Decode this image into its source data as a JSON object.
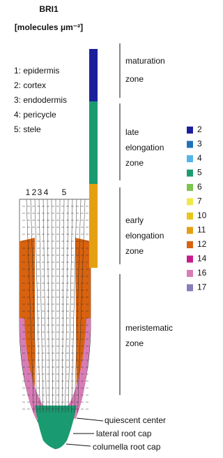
{
  "header": {
    "title": "BRI1",
    "unit": "[molecules μm⁻²]"
  },
  "layers": [
    "1: epidermis",
    "2: cortex",
    "3: endodermis",
    "4: pericycle",
    "5: stele"
  ],
  "column_numbers": [
    "1",
    "2",
    "3",
    "4",
    "5"
  ],
  "zones": [
    "maturation zone",
    "late elongation zone",
    "early elongation zone",
    "meristematic zone"
  ],
  "tip_labels": [
    "quiescent center",
    "lateral root cap",
    "columella root cap"
  ],
  "legend": [
    {
      "label": "2",
      "color": "#1c1f9c"
    },
    {
      "label": "3",
      "color": "#1f72b8"
    },
    {
      "label": "4",
      "color": "#55b4ea"
    },
    {
      "label": "5",
      "color": "#1a9a70"
    },
    {
      "label": "6",
      "color": "#7dc450"
    },
    {
      "label": "7",
      "color": "#f0e845"
    },
    {
      "label": "10",
      "color": "#e8c41c"
    },
    {
      "label": "11",
      "color": "#e5a012"
    },
    {
      "label": "12",
      "color": "#d8620f"
    },
    {
      "label": "14",
      "color": "#c91a8c"
    },
    {
      "label": "16",
      "color": "#d87cb6"
    },
    {
      "label": "17",
      "color": "#8a7cbb"
    }
  ]
}
